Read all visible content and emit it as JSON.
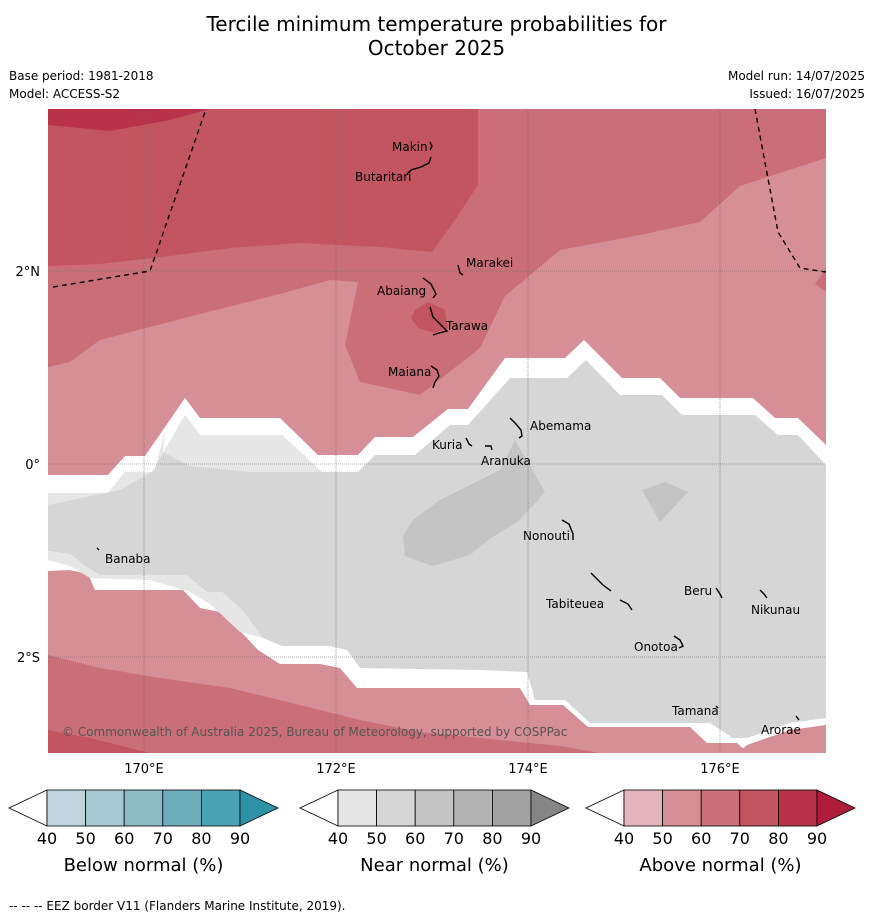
{
  "title": {
    "line1": "Tercile minimum temperature probabilities for",
    "line2": "October 2025"
  },
  "meta": {
    "base_period": "Base period: 1981-2018",
    "model": "Model: ACCESS-S2",
    "model_run": "Model run: 14/07/2025",
    "issued": "Issued: 16/07/2025"
  },
  "map": {
    "lon_ticks": [
      "170°E",
      "172°E",
      "174°E",
      "176°E"
    ],
    "lat_ticks": [
      "2°N",
      "0°",
      "2°S"
    ],
    "places": [
      "Makin",
      "Butaritari",
      "Marakei",
      "Abaiang",
      "Tarawa",
      "Maiana",
      "Abemama",
      "Kuria",
      "Aranuka",
      "Banaba",
      "Nonouti",
      "Beru",
      "Tabiteuea",
      "Nikunau",
      "Onotoa",
      "Tamana",
      "Arorae"
    ],
    "copyright": "© Commonwealth of Australia 2025, Bureau of Meteorology, supported by COSPPac"
  },
  "colorbars": [
    {
      "title": "Below normal (%)",
      "ticks": [
        "40",
        "50",
        "60",
        "70",
        "80",
        "90"
      ],
      "colors": [
        "#ffffff",
        "#bfd4dc",
        "#a6c8d0",
        "#8bb9c4",
        "#6eaebb",
        "#4aa3b2",
        "#2e92a6"
      ]
    },
    {
      "title": "Near normal (%)",
      "ticks": [
        "40",
        "50",
        "60",
        "70",
        "80",
        "90"
      ],
      "colors": [
        "#ffffff",
        "#e6e6e6",
        "#d6d6d6",
        "#c4c4c4",
        "#b3b3b3",
        "#a1a1a1",
        "#858585"
      ]
    },
    {
      "title": "Above normal (%)",
      "ticks": [
        "40",
        "50",
        "60",
        "70",
        "80",
        "90"
      ],
      "colors": [
        "#ffffff",
        "#e3b4bb",
        "#d78f97",
        "#ca6e78",
        "#c25560",
        "#b8334a",
        "#b01d3b"
      ]
    }
  ],
  "footer": "-- -- -- EEZ border V11 (Flanders Marine Institute, 2019)."
}
